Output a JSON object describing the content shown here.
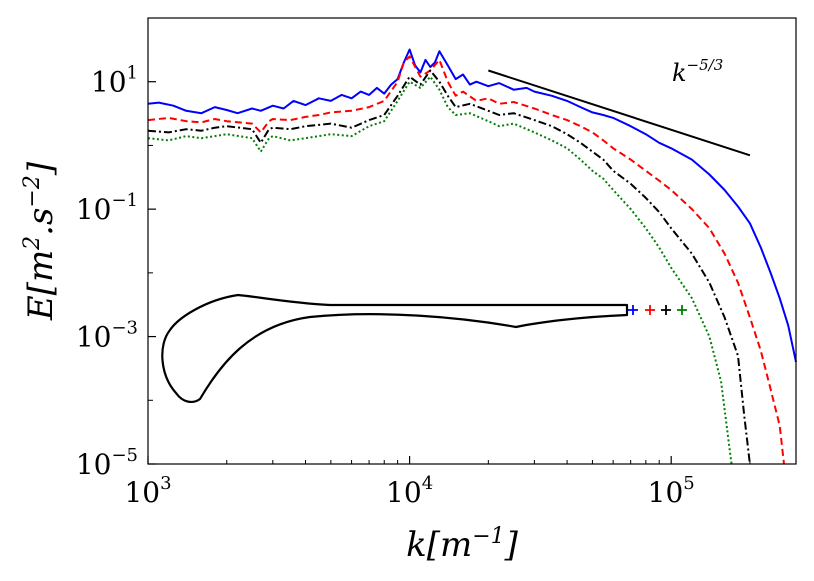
{
  "chart_data": {
    "type": "line",
    "xscale": "log",
    "yscale": "log",
    "xlim": [
      1000,
      300000
    ],
    "ylim": [
      1e-05,
      100
    ],
    "xlabel": "k[m^{-1}]",
    "ylabel": "E[m^{2}.s^{-2}]",
    "grid": false,
    "legend": "none",
    "x_ticks": [
      {
        "value": 1000,
        "base": "10",
        "exp": "3"
      },
      {
        "value": 10000,
        "base": "10",
        "exp": "4"
      },
      {
        "value": 100000,
        "base": "10",
        "exp": "5"
      }
    ],
    "y_ticks": [
      {
        "value": 1e-05,
        "base": "10",
        "exp": "−5"
      },
      {
        "value": 0.001,
        "base": "10",
        "exp": "−3"
      },
      {
        "value": 0.1,
        "base": "10",
        "exp": "−1"
      },
      {
        "value": 10,
        "base": "10",
        "exp": "1"
      }
    ],
    "series": [
      {
        "color": "#0000ff",
        "style": "solid",
        "points": [
          [
            1000,
            4.5
          ],
          [
            1100,
            4.7
          ],
          [
            1250,
            4.2
          ],
          [
            1400,
            3.5
          ],
          [
            1600,
            3.2
          ],
          [
            1800,
            4.0
          ],
          [
            2000,
            3.6
          ],
          [
            2200,
            3.2
          ],
          [
            2500,
            3.8
          ],
          [
            2700,
            3.5
          ],
          [
            3000,
            4.2
          ],
          [
            3300,
            3.8
          ],
          [
            3600,
            5.0
          ],
          [
            4000,
            4.3
          ],
          [
            4500,
            5.5
          ],
          [
            5000,
            5.0
          ],
          [
            5500,
            6.2
          ],
          [
            6000,
            5.5
          ],
          [
            6500,
            7.0
          ],
          [
            7000,
            6.2
          ],
          [
            7500,
            8.0
          ],
          [
            8000,
            6.5
          ],
          [
            8500,
            9.0
          ],
          [
            9000,
            11.0
          ],
          [
            9500,
            20.0
          ],
          [
            10000,
            32.0
          ],
          [
            10500,
            18.0
          ],
          [
            11000,
            14.0
          ],
          [
            11500,
            22.0
          ],
          [
            12000,
            17.0
          ],
          [
            12500,
            20.0
          ],
          [
            13000,
            30.0
          ],
          [
            14000,
            18.0
          ],
          [
            15000,
            11.0
          ],
          [
            16000,
            13.0
          ],
          [
            17000,
            9.0
          ],
          [
            18000,
            10.0
          ],
          [
            20000,
            8.5
          ],
          [
            22000,
            9.5
          ],
          [
            25000,
            7.5
          ],
          [
            28000,
            8.0
          ],
          [
            30000,
            7.0
          ],
          [
            35000,
            6.0
          ],
          [
            40000,
            5.0
          ],
          [
            45000,
            4.0
          ],
          [
            50000,
            3.3
          ],
          [
            55000,
            3.0
          ],
          [
            60000,
            2.7
          ],
          [
            70000,
            2.0
          ],
          [
            80000,
            1.5
          ],
          [
            90000,
            1.1
          ],
          [
            100000,
            0.9
          ],
          [
            120000,
            0.6
          ],
          [
            140000,
            0.35
          ],
          [
            160000,
            0.2
          ],
          [
            180000,
            0.11
          ],
          [
            200000,
            0.06
          ],
          [
            220000,
            0.025
          ],
          [
            240000,
            0.01
          ],
          [
            260000,
            0.004
          ],
          [
            280000,
            0.0015
          ],
          [
            300000,
            0.0004
          ]
        ]
      },
      {
        "color": "#ff0000",
        "style": "dashed",
        "points": [
          [
            1000,
            2.5
          ],
          [
            1200,
            2.7
          ],
          [
            1400,
            2.4
          ],
          [
            1600,
            2.3
          ],
          [
            1800,
            2.6
          ],
          [
            2000,
            2.4
          ],
          [
            2500,
            2.2
          ],
          [
            2700,
            1.6
          ],
          [
            2900,
            2.4
          ],
          [
            3000,
            2.6
          ],
          [
            3500,
            2.5
          ],
          [
            4000,
            2.8
          ],
          [
            4500,
            3.0
          ],
          [
            5000,
            3.3
          ],
          [
            6000,
            3.5
          ],
          [
            7000,
            4.0
          ],
          [
            8000,
            5.0
          ],
          [
            9000,
            10.0
          ],
          [
            9500,
            20.0
          ],
          [
            10000,
            25.0
          ],
          [
            11000,
            12.0
          ],
          [
            12000,
            15.0
          ],
          [
            13000,
            22.0
          ],
          [
            14000,
            10.0
          ],
          [
            15000,
            6.0
          ],
          [
            16000,
            7.0
          ],
          [
            18000,
            5.0
          ],
          [
            20000,
            5.5
          ],
          [
            22000,
            4.5
          ],
          [
            25000,
            4.8
          ],
          [
            30000,
            3.8
          ],
          [
            35000,
            3.0
          ],
          [
            40000,
            2.5
          ],
          [
            45000,
            2.0
          ],
          [
            50000,
            1.6
          ],
          [
            55000,
            1.2
          ],
          [
            60000,
            0.9
          ],
          [
            70000,
            0.6
          ],
          [
            80000,
            0.4
          ],
          [
            90000,
            0.28
          ],
          [
            100000,
            0.2
          ],
          [
            120000,
            0.1
          ],
          [
            140000,
            0.05
          ],
          [
            160000,
            0.02
          ],
          [
            180000,
            0.007
          ],
          [
            200000,
            0.002
          ],
          [
            220000,
            0.0006
          ],
          [
            240000,
            0.00015
          ],
          [
            260000,
            4e-05
          ],
          [
            270000,
            1e-05
          ]
        ]
      },
      {
        "color": "#000000",
        "style": "dashdot",
        "points": [
          [
            1000,
            1.7
          ],
          [
            1200,
            1.6
          ],
          [
            1400,
            1.8
          ],
          [
            1600,
            1.7
          ],
          [
            1800,
            1.9
          ],
          [
            2000,
            2.0
          ],
          [
            2500,
            1.8
          ],
          [
            2700,
            1.1
          ],
          [
            2900,
            1.8
          ],
          [
            3000,
            1.9
          ],
          [
            3500,
            1.8
          ],
          [
            4000,
            2.0
          ],
          [
            4500,
            2.1
          ],
          [
            5000,
            2.2
          ],
          [
            6000,
            1.9
          ],
          [
            7000,
            2.5
          ],
          [
            8000,
            3.0
          ],
          [
            9000,
            6.0
          ],
          [
            10000,
            12.0
          ],
          [
            11000,
            9.0
          ],
          [
            12000,
            15.0
          ],
          [
            13000,
            10.0
          ],
          [
            14000,
            6.0
          ],
          [
            15000,
            4.0
          ],
          [
            17000,
            4.5
          ],
          [
            20000,
            3.5
          ],
          [
            22000,
            3.0
          ],
          [
            25000,
            3.2
          ],
          [
            30000,
            2.5
          ],
          [
            35000,
            2.0
          ],
          [
            40000,
            1.5
          ],
          [
            45000,
            1.1
          ],
          [
            50000,
            0.8
          ],
          [
            55000,
            0.6
          ],
          [
            60000,
            0.4
          ],
          [
            70000,
            0.25
          ],
          [
            80000,
            0.15
          ],
          [
            90000,
            0.09
          ],
          [
            100000,
            0.05
          ],
          [
            120000,
            0.02
          ],
          [
            140000,
            0.007
          ],
          [
            160000,
            0.002
          ],
          [
            180000,
            0.0005
          ],
          [
            190000,
            6e-05
          ],
          [
            200000,
            1e-05
          ]
        ]
      },
      {
        "color": "#008000",
        "style": "dotted",
        "points": [
          [
            1000,
            1.3
          ],
          [
            1200,
            1.2
          ],
          [
            1400,
            1.4
          ],
          [
            1600,
            1.3
          ],
          [
            1800,
            1.4
          ],
          [
            2000,
            1.5
          ],
          [
            2500,
            1.3
          ],
          [
            2700,
            0.8
          ],
          [
            2900,
            1.3
          ],
          [
            3000,
            1.4
          ],
          [
            3500,
            1.2
          ],
          [
            4000,
            1.3
          ],
          [
            4500,
            1.4
          ],
          [
            5000,
            1.5
          ],
          [
            6000,
            1.4
          ],
          [
            7000,
            2.0
          ],
          [
            8000,
            2.4
          ],
          [
            9000,
            5.0
          ],
          [
            10000,
            10.0
          ],
          [
            11000,
            8.0
          ],
          [
            12000,
            12.0
          ],
          [
            13000,
            7.5
          ],
          [
            14000,
            4.0
          ],
          [
            15000,
            3.0
          ],
          [
            17000,
            3.2
          ],
          [
            20000,
            2.4
          ],
          [
            22000,
            2.0
          ],
          [
            25000,
            2.2
          ],
          [
            30000,
            1.6
          ],
          [
            35000,
            1.2
          ],
          [
            40000,
            0.9
          ],
          [
            45000,
            0.6
          ],
          [
            50000,
            0.4
          ],
          [
            55000,
            0.3
          ],
          [
            60000,
            0.2
          ],
          [
            70000,
            0.1
          ],
          [
            80000,
            0.05
          ],
          [
            90000,
            0.025
          ],
          [
            100000,
            0.012
          ],
          [
            120000,
            0.004
          ],
          [
            140000,
            0.001
          ],
          [
            155000,
            0.0002
          ],
          [
            170000,
            1e-05
          ]
        ]
      }
    ],
    "reference_line": {
      "label_base": "k",
      "label_exp": "−5/3",
      "points": [
        [
          20000,
          15.0
        ],
        [
          200000,
          0.7
        ]
      ]
    },
    "inset": {
      "description_visible": false,
      "markers": [
        {
          "color": "#0000ff"
        },
        {
          "color": "#ff0000"
        },
        {
          "color": "#000000"
        },
        {
          "color": "#008000"
        }
      ]
    }
  }
}
